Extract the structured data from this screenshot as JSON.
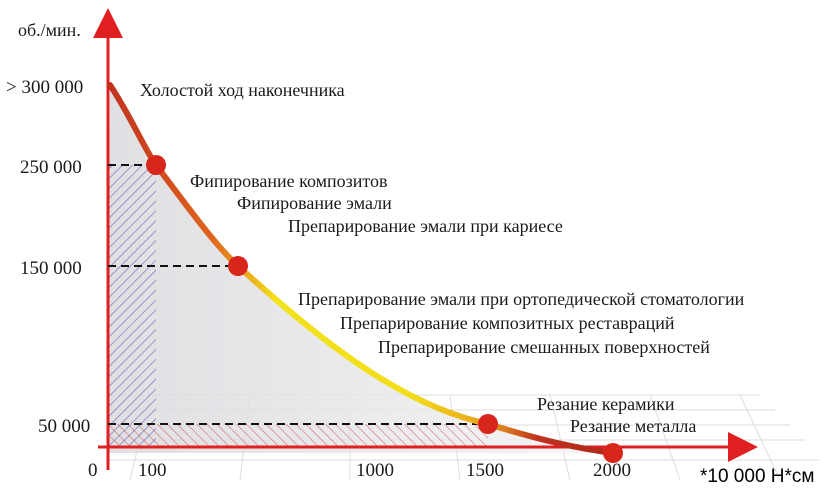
{
  "chart_data": {
    "type": "line",
    "ylabel": "об./мин.",
    "x_ticks": [
      "0",
      "100",
      "1000",
      "1500",
      "2000"
    ],
    "y_ticks": [
      "50 000",
      "150 000",
      "250 000",
      "> 300 000"
    ],
    "x_unit_note": "*10 000 Н*см",
    "points": [
      {
        "x": 100,
        "y": 250000
      },
      {
        "x": 500,
        "y": 150000
      },
      {
        "x": 1500,
        "y": 50000
      },
      {
        "x": 2000,
        "y": 0
      }
    ],
    "annotations": [
      "Холостой ход наконечника",
      "Фипирование композитов",
      "Фипирование эмали",
      "Препарирование эмали при кариесе",
      "Препарирование эмали при ортопедической стоматологии",
      "Препарирование композитных реставраций",
      "Препарирование смешанных поверхностей",
      "Резание керамики",
      "Резание металла"
    ],
    "colors": {
      "curve_start": "#c0321f",
      "curve_mid": "#f2e21a",
      "curve_end": "#c0321f",
      "point": "#d8261c",
      "hatch_blue": "#5a5ab8",
      "hatch_red": "#c85050"
    }
  }
}
